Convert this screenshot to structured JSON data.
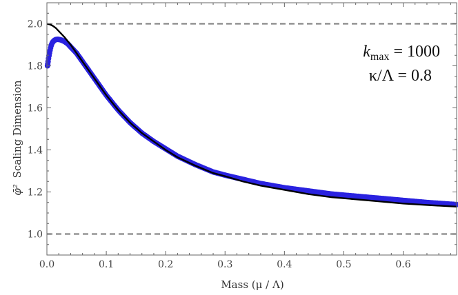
{
  "chart_data": {
    "type": "scatter",
    "title": "",
    "xlabel": "Mass (μ / Λ)",
    "ylabel": "Scaling Dimension",
    "ylabel_symbol": "φ̄²",
    "xlim": [
      0.0,
      0.69
    ],
    "ylim": [
      0.9,
      2.1
    ],
    "x_ticks": [
      "0.0",
      "0.1",
      "0.2",
      "0.3",
      "0.4",
      "0.5",
      "0.6"
    ],
    "y_ticks": [
      "1.0",
      "1.2",
      "1.4",
      "1.6",
      "1.8",
      "2.0"
    ],
    "grid": false,
    "legend": "none",
    "annotations": {
      "line1_symbol": "k",
      "line1_sub": "max",
      "line1_value": " = 1000",
      "line2_text": "κ/Λ = 0.8"
    },
    "reference_lines": [
      {
        "y": 2.0,
        "style": "dashed",
        "color": "#888888"
      },
      {
        "y": 1.0,
        "style": "dashed",
        "color": "#888888"
      }
    ],
    "series": [
      {
        "kind": "points",
        "color": "#2a22e0",
        "x": [
          0.001,
          0.003,
          0.005,
          0.007,
          0.009,
          0.012,
          0.015,
          0.018,
          0.021,
          0.025,
          0.03,
          0.035,
          0.04,
          0.05,
          0.06,
          0.07,
          0.08,
          0.09,
          0.1,
          0.12,
          0.14,
          0.16,
          0.18,
          0.2,
          0.22,
          0.25,
          0.28,
          0.3,
          0.33,
          0.36,
          0.4,
          0.44,
          0.48,
          0.52,
          0.56,
          0.6,
          0.64,
          0.69
        ],
        "y": [
          1.8,
          1.84,
          1.87,
          1.895,
          1.91,
          1.92,
          1.925,
          1.926,
          1.925,
          1.922,
          1.915,
          1.905,
          1.89,
          1.86,
          1.82,
          1.78,
          1.74,
          1.7,
          1.66,
          1.59,
          1.53,
          1.48,
          1.44,
          1.405,
          1.37,
          1.33,
          1.295,
          1.28,
          1.26,
          1.24,
          1.22,
          1.205,
          1.19,
          1.18,
          1.17,
          1.16,
          1.15,
          1.14
        ]
      },
      {
        "kind": "line",
        "color": "#000000",
        "x": [
          0.0,
          0.005,
          0.01,
          0.015,
          0.02,
          0.03,
          0.04,
          0.05,
          0.06,
          0.07,
          0.08,
          0.09,
          0.1,
          0.12,
          0.14,
          0.16,
          0.18,
          0.2,
          0.22,
          0.25,
          0.28,
          0.3,
          0.33,
          0.36,
          0.4,
          0.44,
          0.48,
          0.52,
          0.56,
          0.6,
          0.64,
          0.69
        ],
        "y": [
          2.0,
          1.997,
          1.99,
          1.98,
          1.965,
          1.935,
          1.9,
          1.86,
          1.82,
          1.78,
          1.74,
          1.7,
          1.66,
          1.59,
          1.53,
          1.48,
          1.44,
          1.4,
          1.365,
          1.325,
          1.29,
          1.275,
          1.25,
          1.23,
          1.21,
          1.19,
          1.175,
          1.165,
          1.155,
          1.145,
          1.138,
          1.13
        ]
      }
    ]
  }
}
